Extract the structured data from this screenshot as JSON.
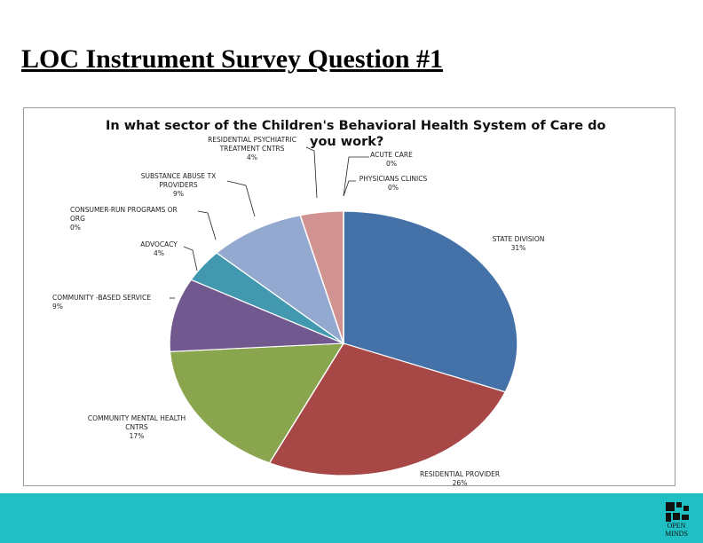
{
  "slide": {
    "title": "LOC Instrument Survey Question #1"
  },
  "footer": {
    "logo_text": "OPEN MINDS"
  },
  "colors": {
    "state_division": "#4471a8",
    "residential_provider": "#a74846",
    "community_mental_health": "#89a54e",
    "community_based": "#71588f",
    "advocacy": "#4198af",
    "substance_abuse": "#93a9cf",
    "residential_psychiatric": "#d19392",
    "footer": "#1fbfc3"
  },
  "chart_data": {
    "type": "pie",
    "title": "In what sector of the Children's Behavioral Health System of Care do you work?",
    "title_lines": [
      "In what sector of the Children's Behavioral Health System of Care do",
      "you work?"
    ],
    "legend": "none (leader-line labels)",
    "slices": [
      {
        "name": "STATE DIVISION",
        "label_lines": [
          "STATE DIVISION"
        ],
        "pct_label": "31%",
        "value": 31,
        "color": "#4471a8"
      },
      {
        "name": "RESIDENTIAL PROVIDER",
        "label_lines": [
          "RESIDENTIAL PROVIDER"
        ],
        "pct_label": "26%",
        "value": 26,
        "color": "#a74846"
      },
      {
        "name": "COMMUNITY MENTAL HEALTH CNTRS",
        "label_lines": [
          "COMMUNITY MENTAL HEALTH",
          "CNTRS"
        ],
        "pct_label": "17%",
        "value": 17,
        "color": "#89a54e"
      },
      {
        "name": "COMMUNITY -BASED SERVICE",
        "label_lines": [
          "COMMUNITY -BASED SERVICE"
        ],
        "pct_label": "9%",
        "value": 9,
        "color": "#71588f"
      },
      {
        "name": "ADVOCACY",
        "label_lines": [
          "ADVOCACY"
        ],
        "pct_label": "4%",
        "value": 4,
        "color": "#4198af"
      },
      {
        "name": "CONSUMER-RUN PROGRAMS OR ORG",
        "label_lines": [
          "CONSUMER-RUN PROGRAMS OR",
          "ORG"
        ],
        "pct_label": "0%",
        "value": 0,
        "color": "#bbbbbb"
      },
      {
        "name": "SUBSTANCE ABUSE TX PROVIDERS",
        "label_lines": [
          "SUBSTANCE ABUSE TX",
          "PROVIDERS"
        ],
        "pct_label": "9%",
        "value": 9,
        "color": "#93a9cf"
      },
      {
        "name": "RESIDENTIAL PSYCHIATRIC TREATMENT CNTRS",
        "label_lines": [
          "RESIDENTIAL PSYCHIATRIC",
          "TREATMENT CNTRS"
        ],
        "pct_label": "4%",
        "value": 4,
        "color": "#d19392"
      },
      {
        "name": "ACUTE CARE",
        "label_lines": [
          "ACUTE CARE"
        ],
        "pct_label": "0%",
        "value": 0,
        "color": "#bbbbbb"
      },
      {
        "name": "PHYSICIANS CLINICS",
        "label_lines": [
          "PHYSICIANS CLINICS"
        ],
        "pct_label": "0%",
        "value": 0,
        "color": "#bbbbbb"
      }
    ]
  }
}
